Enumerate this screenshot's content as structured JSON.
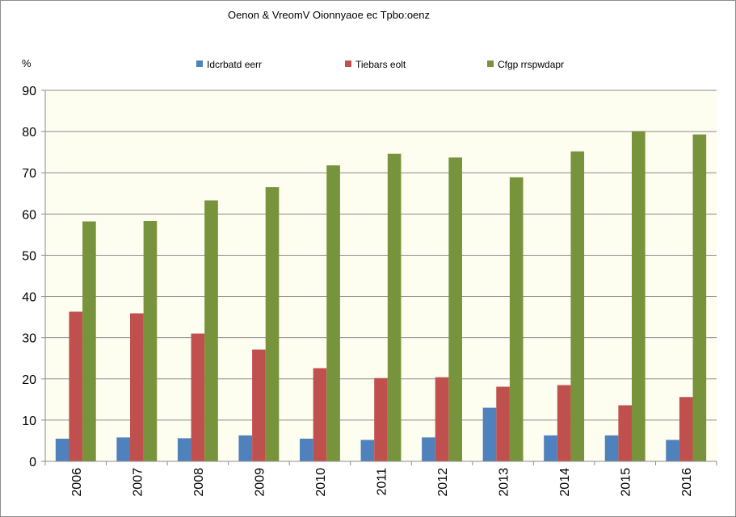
{
  "chart_data": {
    "type": "bar",
    "title": "Oenon & VreomV Oionnyaoe ec Tpbo:oenz",
    "ylabel": "%",
    "xlabel": "",
    "ylim": [
      0,
      90
    ],
    "yticks": [
      0,
      10,
      20,
      30,
      40,
      50,
      60,
      70,
      80,
      90
    ],
    "grid": true,
    "legend_position": "top",
    "categories": [
      "2006",
      "2007",
      "2008",
      "2009",
      "2010",
      "2011",
      "2012",
      "2013",
      "2014",
      "2015",
      "2016"
    ],
    "series": [
      {
        "name": "Idcrbatd eerr",
        "color": "#4f81bd",
        "values": [
          5.5,
          5.8,
          5.6,
          6.3,
          5.5,
          5.2,
          5.8,
          13.0,
          6.3,
          6.3,
          5.2
        ]
      },
      {
        "name": "Tiebars eolt",
        "color": "#c0504d",
        "values": [
          36.3,
          35.9,
          31.0,
          27.1,
          22.6,
          20.2,
          20.4,
          18.1,
          18.5,
          13.6,
          15.6
        ]
      },
      {
        "name": "Cfgp rrspwdapr",
        "color": "#77933c",
        "values": [
          58.2,
          58.3,
          63.3,
          66.5,
          71.8,
          74.6,
          73.7,
          68.9,
          75.2,
          80.1,
          79.3
        ]
      }
    ]
  }
}
